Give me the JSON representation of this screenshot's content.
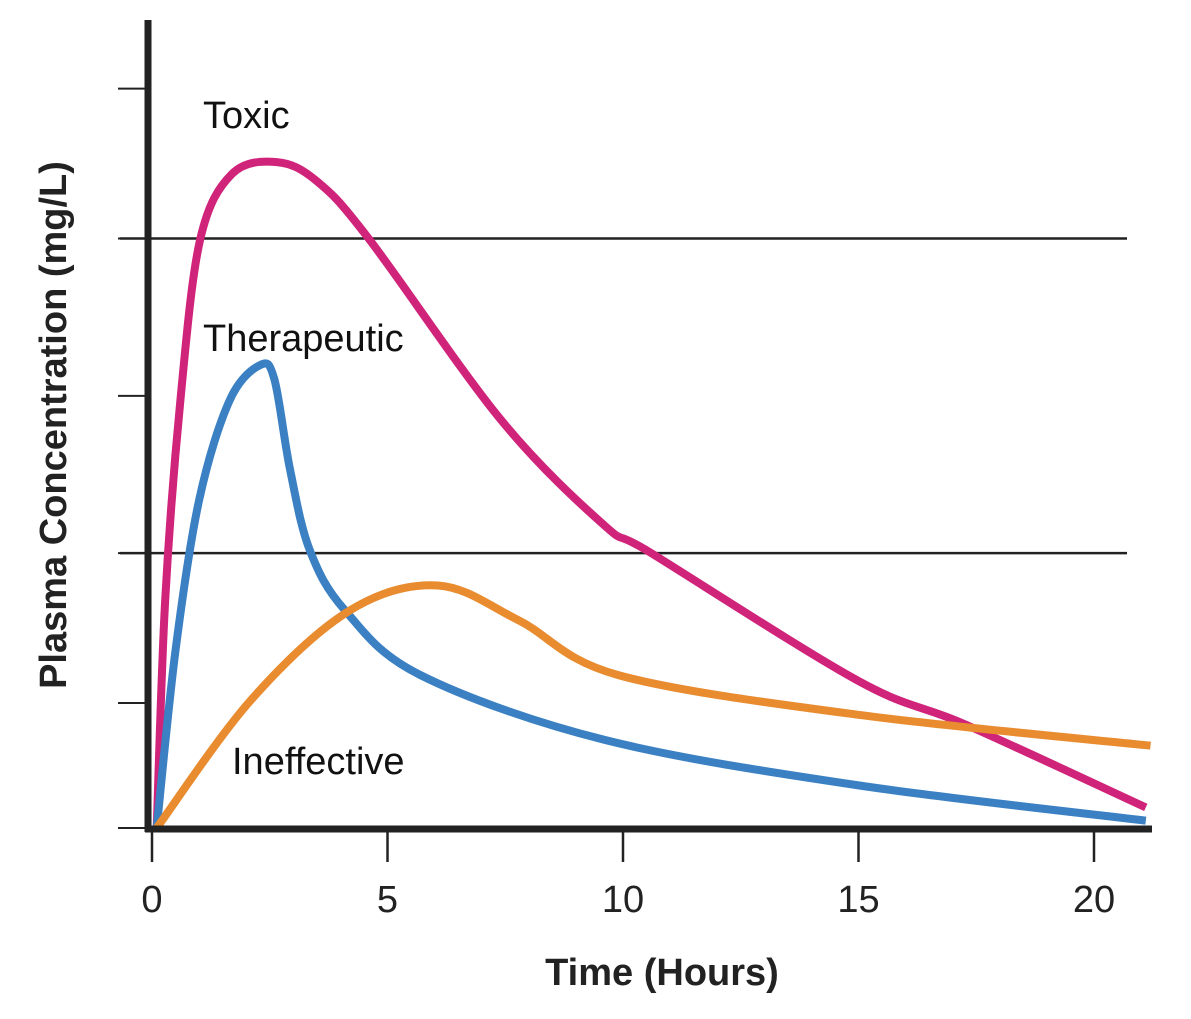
{
  "chart_data": {
    "type": "line",
    "title": "",
    "xlabel": "Time (Hours)",
    "ylabel": "Plasma Concentration (mg/L)",
    "xlim": [
      0,
      21.2
    ],
    "ylim": [
      0,
      5.5
    ],
    "x_ticks": [
      0,
      5,
      10,
      15,
      20
    ],
    "x_tick_labels": [
      "0",
      "5",
      "10",
      "15",
      "20"
    ],
    "y_ticks": [
      0,
      0.85,
      1.87,
      2.94,
      4.01,
      5.03
    ],
    "grid": false,
    "threshold_lines": [
      4.01,
      1.87
    ],
    "annotations": [
      {
        "text": "Toxic",
        "series": 0
      },
      {
        "text": "Therapeutic",
        "series": 1
      },
      {
        "text": "Ineffective",
        "series": 2
      }
    ],
    "series": [
      {
        "color": "#d0237a",
        "points": [
          [
            0.1,
            0
          ],
          [
            0.28,
            1.55
          ],
          [
            0.6,
            2.9
          ],
          [
            1.02,
            4.0
          ],
          [
            1.7,
            4.45
          ],
          [
            2.65,
            4.53
          ],
          [
            3.5,
            4.4
          ],
          [
            4.6,
            4.01
          ],
          [
            7.4,
            2.78
          ],
          [
            9.6,
            2.06
          ],
          [
            10.6,
            1.87
          ],
          [
            15,
            1.0
          ],
          [
            17.3,
            0.7
          ],
          [
            21.1,
            0.14
          ]
        ]
      },
      {
        "color": "#3a80c3",
        "points": [
          [
            0.1,
            0
          ],
          [
            0.5,
            1.21
          ],
          [
            1.0,
            2.23
          ],
          [
            1.65,
            2.91
          ],
          [
            2.3,
            3.15
          ],
          [
            2.6,
            3.05
          ],
          [
            2.93,
            2.44
          ],
          [
            3.35,
            1.89
          ],
          [
            4.1,
            1.48
          ],
          [
            5.7,
            1.04
          ],
          [
            9.6,
            0.6
          ],
          [
            15,
            0.29
          ],
          [
            21.1,
            0.05
          ]
        ]
      },
      {
        "color": "#e98b2f",
        "points": [
          [
            0.1,
            0
          ],
          [
            2.1,
            0.87
          ],
          [
            4.2,
            1.48
          ],
          [
            6.07,
            1.65
          ],
          [
            7.8,
            1.41
          ],
          [
            9.9,
            1.04
          ],
          [
            15,
            0.77
          ],
          [
            21.2,
            0.56
          ]
        ]
      }
    ]
  }
}
